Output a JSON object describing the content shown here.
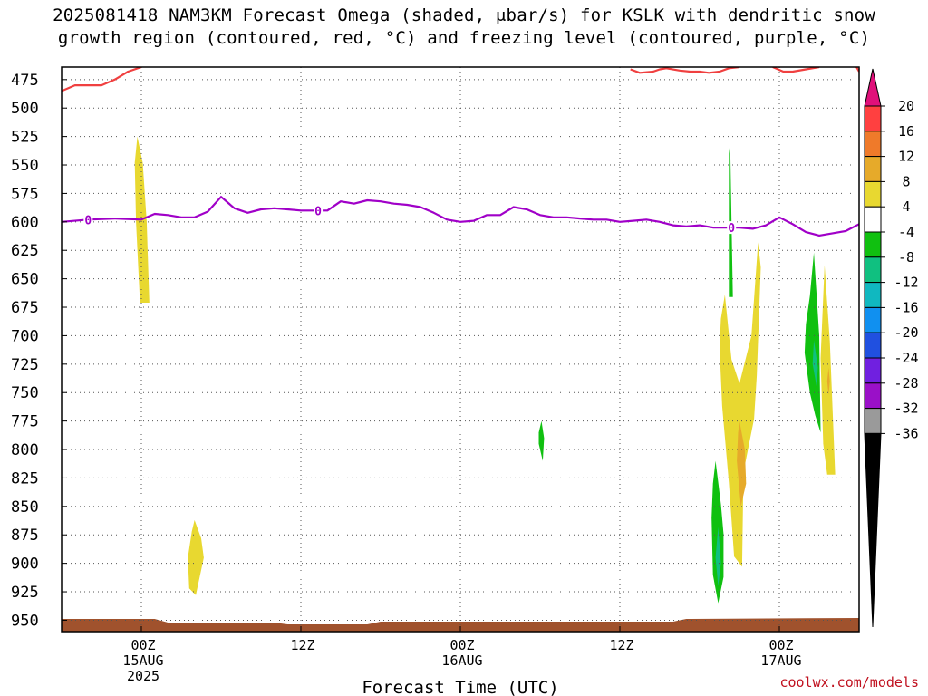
{
  "title_line1": "2025081418 NAM3KM Forecast Omega (shaded, μbar/s) for KSLK with dendritic snow",
  "title_line2": "growth region (contoured, red, °C) and freezing level (contoured, purple, °C)",
  "watermark": "coolwx.com/models",
  "colors": {
    "dendritic_contour": "#f04040",
    "freezing_contour": "#a000c8",
    "terrain": "#a0522d",
    "grid": "#555555"
  },
  "chart_data": {
    "type": "area",
    "xlabel": "Forecast Time (UTC)",
    "x_start_hours_before_first_tick": 6,
    "x_range_hours": [
      0,
      60
    ],
    "x_ticks": [
      {
        "hour": 6,
        "lines": [
          "00Z",
          "15AUG",
          "2025"
        ]
      },
      {
        "hour": 18,
        "lines": [
          "12Z"
        ]
      },
      {
        "hour": 30,
        "lines": [
          "00Z",
          "16AUG"
        ]
      },
      {
        "hour": 42,
        "lines": [
          "12Z"
        ]
      },
      {
        "hour": 54,
        "lines": [
          "00Z",
          "17AUG"
        ]
      }
    ],
    "y_label": "",
    "y_range_mb": [
      960,
      464
    ],
    "y_ticks": [
      475,
      500,
      525,
      550,
      575,
      600,
      625,
      650,
      675,
      700,
      725,
      750,
      775,
      800,
      825,
      850,
      875,
      900,
      925,
      950
    ],
    "grid": true,
    "colorbar": {
      "labels": [
        "20",
        "16",
        "12",
        "8",
        "4",
        "-4",
        "-8",
        "-12",
        "-16",
        "-20",
        "-24",
        "-28",
        "-32",
        "-36"
      ],
      "colors": [
        "#ff4040",
        "#ef7a2a",
        "#e6aa2a",
        "#e8d830",
        "#ffffff",
        "#10c010",
        "#10c080",
        "#10b8c0",
        "#1090f0",
        "#2050e0",
        "#7020e0",
        "#9a10c8",
        "#9a9a9a"
      ],
      "max_arrow_color": "#e0107a",
      "min_arrow_color": "#000000"
    },
    "freezing_level": {
      "label": "0",
      "label_at_hours": [
        2,
        19.3,
        50.4
      ],
      "points": [
        [
          0,
          600
        ],
        [
          2,
          598
        ],
        [
          4,
          597
        ],
        [
          6,
          598
        ],
        [
          7,
          593
        ],
        [
          8,
          594
        ],
        [
          9,
          596
        ],
        [
          10,
          596
        ],
        [
          11,
          591
        ],
        [
          12,
          578
        ],
        [
          13,
          588
        ],
        [
          14,
          592
        ],
        [
          15,
          589
        ],
        [
          16,
          588
        ],
        [
          17,
          589
        ],
        [
          18,
          590
        ],
        [
          19,
          590
        ],
        [
          20,
          590
        ],
        [
          21,
          582
        ],
        [
          22,
          584
        ],
        [
          23,
          581
        ],
        [
          24,
          582
        ],
        [
          25,
          584
        ],
        [
          26,
          585
        ],
        [
          27,
          587
        ],
        [
          28,
          592
        ],
        [
          29,
          598
        ],
        [
          30,
          600
        ],
        [
          31,
          599
        ],
        [
          32,
          594
        ],
        [
          33,
          594
        ],
        [
          34,
          587
        ],
        [
          35,
          589
        ],
        [
          36,
          594
        ],
        [
          37,
          596
        ],
        [
          38,
          596
        ],
        [
          39,
          597
        ],
        [
          40,
          598
        ],
        [
          41,
          598
        ],
        [
          42,
          600
        ],
        [
          43,
          599
        ],
        [
          44,
          598
        ],
        [
          45,
          600
        ],
        [
          46,
          603
        ],
        [
          47,
          604
        ],
        [
          48,
          603
        ],
        [
          49,
          605
        ],
        [
          50,
          605
        ],
        [
          51,
          605
        ],
        [
          52,
          606
        ],
        [
          53,
          603
        ],
        [
          54,
          596
        ],
        [
          55,
          602
        ],
        [
          56,
          609
        ],
        [
          57,
          612
        ],
        [
          58,
          610
        ],
        [
          59,
          608
        ],
        [
          60,
          602
        ]
      ]
    },
    "dendritic_contours": [
      {
        "points": [
          [
            0,
            485
          ],
          [
            1,
            480
          ],
          [
            2,
            480
          ],
          [
            3,
            480
          ],
          [
            4,
            475
          ],
          [
            5,
            468
          ],
          [
            6,
            464
          ]
        ]
      },
      {
        "points": [
          [
            42.8,
            466
          ],
          [
            43.5,
            469
          ],
          [
            44.5,
            468
          ],
          [
            45,
            466
          ],
          [
            45.5,
            465
          ],
          [
            46.5,
            467
          ],
          [
            47.3,
            468
          ],
          [
            48,
            468
          ],
          [
            48.7,
            469
          ],
          [
            49.5,
            468
          ],
          [
            50.2,
            465
          ],
          [
            51,
            464
          ]
        ]
      },
      {
        "points": [
          [
            53.5,
            464
          ],
          [
            54.3,
            468
          ],
          [
            55,
            468
          ],
          [
            56,
            466
          ],
          [
            57,
            464
          ]
        ]
      },
      {
        "points": [
          [
            59.8,
            464
          ],
          [
            60,
            468
          ]
        ]
      }
    ],
    "omega_regions": [
      {
        "value": 4,
        "points": [
          [
            5.7,
            525
          ],
          [
            6.1,
            548
          ],
          [
            6.4,
            600
          ],
          [
            6.6,
            671
          ],
          [
            5.9,
            671
          ],
          [
            5.6,
            600
          ],
          [
            5.5,
            548
          ]
        ]
      },
      {
        "value": 4,
        "points": [
          [
            10,
            862
          ],
          [
            10.5,
            878
          ],
          [
            10.7,
            895
          ],
          [
            10.1,
            928
          ],
          [
            9.6,
            922
          ],
          [
            9.5,
            895
          ],
          [
            9.8,
            872
          ]
        ]
      },
      {
        "value": -4,
        "points": [
          [
            36.1,
            775
          ],
          [
            36.3,
            790
          ],
          [
            36.2,
            810
          ],
          [
            35.9,
            795
          ],
          [
            35.9,
            785
          ]
        ]
      },
      {
        "value": 4,
        "points": [
          [
            49.9,
            664
          ],
          [
            50.4,
            721
          ],
          [
            51,
            742
          ],
          [
            51.9,
            700
          ],
          [
            52.4,
            618
          ],
          [
            52.6,
            640
          ],
          [
            52.3,
            735
          ],
          [
            52.1,
            773
          ],
          [
            51.3,
            820
          ],
          [
            51.2,
            903
          ],
          [
            50.6,
            894
          ],
          [
            50.2,
            829
          ],
          [
            49.7,
            762
          ],
          [
            49.5,
            710
          ],
          [
            49.6,
            685
          ]
        ]
      },
      {
        "value": 8,
        "points": [
          [
            51,
            775
          ],
          [
            51.4,
            800
          ],
          [
            51.5,
            830
          ],
          [
            51.1,
            850
          ],
          [
            50.8,
            810
          ],
          [
            50.9,
            785
          ]
        ]
      },
      {
        "value": -4,
        "points": [
          [
            50.3,
            530
          ],
          [
            50.4,
            600
          ],
          [
            50.5,
            666
          ],
          [
            50.2,
            666
          ],
          [
            50.2,
            600
          ],
          [
            50.2,
            540
          ]
        ]
      },
      {
        "value": -4,
        "points": [
          [
            49.2,
            810
          ],
          [
            49.6,
            848
          ],
          [
            49.8,
            874
          ],
          [
            49.8,
            912
          ],
          [
            49.4,
            935
          ],
          [
            49,
            910
          ],
          [
            48.9,
            860
          ],
          [
            49,
            830
          ]
        ]
      },
      {
        "value": -8,
        "points": [
          [
            49.4,
            868
          ],
          [
            49.6,
            900
          ],
          [
            49.4,
            920
          ],
          [
            49.2,
            895
          ]
        ]
      },
      {
        "value": -4,
        "points": [
          [
            56.6,
            627
          ],
          [
            57,
            700
          ],
          [
            57.1,
            785
          ],
          [
            56.7,
            770
          ],
          [
            56.3,
            750
          ],
          [
            55.9,
            715
          ],
          [
            56,
            690
          ],
          [
            56.3,
            665
          ]
        ]
      },
      {
        "value": -8,
        "points": [
          [
            56.6,
            704
          ],
          [
            56.9,
            728
          ],
          [
            56.8,
            745
          ],
          [
            56.5,
            725
          ]
        ]
      },
      {
        "value": 4,
        "points": [
          [
            57.4,
            638
          ],
          [
            57.8,
            705
          ],
          [
            58.2,
            822
          ],
          [
            57.6,
            822
          ],
          [
            57.3,
            795
          ],
          [
            57.1,
            720
          ]
        ]
      },
      {
        "value": 8,
        "points": [
          [
            57.7,
            728
          ],
          [
            57.8,
            740
          ],
          [
            57.7,
            752
          ],
          [
            57.6,
            740
          ]
        ]
      }
    ]
  }
}
